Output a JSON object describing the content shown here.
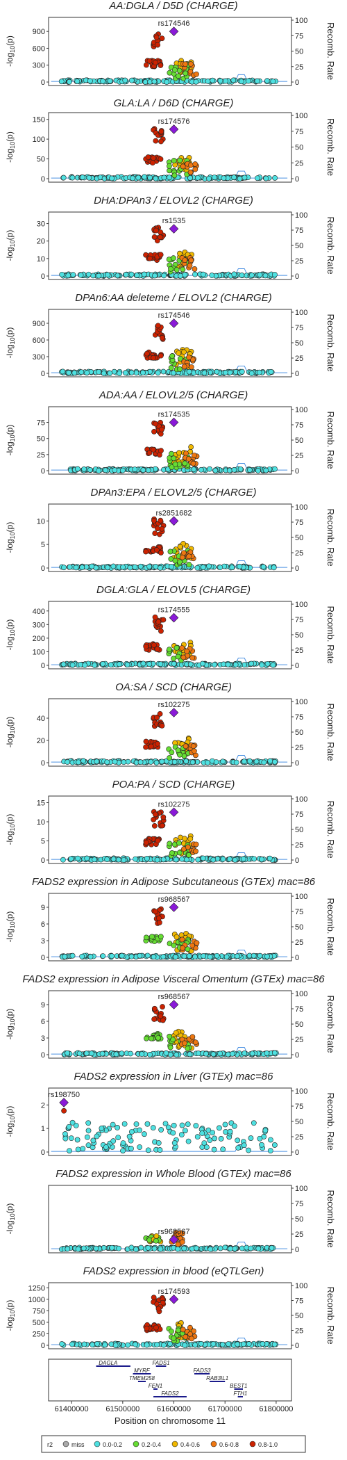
{
  "chart_data": [
    {
      "type": "scatter",
      "title": "AA:DGLA / D5D (CHARGE)",
      "lead_snp": "rs174546",
      "lead": [
        1,
        900
      ],
      "ylabel_base": "-log",
      "ylabel_sub": "10",
      "ylabel_arg": "(p)",
      "yticks": [
        0,
        300,
        600,
        900
      ],
      "ylim": [
        0,
        1100
      ],
      "y2label": "Recomb. Rate",
      "y2ticks": [
        0,
        25,
        50,
        75,
        100
      ],
      "y2lim": [
        0,
        100
      ],
      "pattern": "charge"
    },
    {
      "type": "scatter",
      "title": "GLA:LA / D6D (CHARGE)",
      "lead_snp": "rs174576",
      "lead": [
        1,
        125
      ],
      "ylabel_base": "-log",
      "ylabel_sub": "10",
      "ylabel_arg": "(p)",
      "yticks": [
        0,
        50,
        100,
        150
      ],
      "ylim": [
        0,
        160
      ],
      "y2label": "Recomb. Rate",
      "y2ticks": [
        0,
        25,
        50,
        75,
        100
      ],
      "y2lim": [
        0,
        100
      ],
      "pattern": "charge"
    },
    {
      "type": "scatter",
      "title": "DHA:DPAn3 / ELOVL2 (CHARGE)",
      "lead_snp": "rs1535",
      "lead": [
        1,
        27
      ],
      "ylabel_base": "-log",
      "ylabel_sub": "10",
      "ylabel_arg": "(p)",
      "yticks": [
        0,
        10,
        20,
        30
      ],
      "ylim": [
        0,
        35
      ],
      "y2label": "Recomb. Rate",
      "y2ticks": [
        0,
        25,
        50,
        75,
        100
      ],
      "y2lim": [
        0,
        100
      ],
      "pattern": "charge"
    },
    {
      "type": "scatter",
      "title": "DPAn6:AA deleteme / ELOVL2 (CHARGE)",
      "lead_snp": "rs174546",
      "lead": [
        1,
        900
      ],
      "ylabel_base": "-log",
      "ylabel_sub": "10",
      "ylabel_arg": "(p)",
      "yticks": [
        0,
        300,
        600,
        900
      ],
      "ylim": [
        0,
        1100
      ],
      "y2label": "Recomb. Rate",
      "y2ticks": [
        0,
        25,
        50,
        75,
        100
      ],
      "y2lim": [
        0,
        100
      ],
      "pattern": "charge"
    },
    {
      "type": "scatter",
      "title": "ADA:AA / ELOVL2/5 (CHARGE)",
      "lead_snp": "rs174535",
      "lead": [
        1,
        75
      ],
      "ylabel_base": "-log",
      "ylabel_sub": "10",
      "ylabel_arg": "(p)",
      "yticks": [
        0,
        25,
        50,
        75
      ],
      "ylim": [
        0,
        95
      ],
      "y2label": "Recomb. Rate",
      "y2ticks": [
        0,
        25,
        50,
        75,
        100
      ],
      "y2lim": [
        0,
        100
      ],
      "pattern": "charge"
    },
    {
      "type": "scatter",
      "title": "DPAn3:EPA / ELOVL2/5 (CHARGE)",
      "lead_snp": "rs2851682",
      "lead": [
        1,
        10
      ],
      "ylabel_base": "-log",
      "ylabel_sub": "10",
      "ylabel_arg": "(p)",
      "yticks": [
        0,
        5,
        10
      ],
      "ylim": [
        0,
        13
      ],
      "y2label": "Recomb. Rate",
      "y2ticks": [
        0,
        25,
        50,
        75,
        100
      ],
      "y2lim": [
        0,
        100
      ],
      "pattern": "charge"
    },
    {
      "type": "scatter",
      "title": "DGLA:GLA / ELOVL5 (CHARGE)",
      "lead_snp": "rs174555",
      "lead": [
        1,
        350
      ],
      "ylabel_base": "-log",
      "ylabel_sub": "10",
      "ylabel_arg": "(p)",
      "yticks": [
        0,
        100,
        200,
        300,
        400
      ],
      "ylim": [
        0,
        450
      ],
      "y2label": "Recomb. Rate",
      "y2ticks": [
        0,
        25,
        50,
        75,
        100
      ],
      "y2lim": [
        0,
        100
      ],
      "pattern": "charge"
    },
    {
      "type": "scatter",
      "title": "OA:SA / SCD (CHARGE)",
      "lead_snp": "rs102275",
      "lead": [
        1,
        45
      ],
      "ylabel_base": "-log",
      "ylabel_sub": "10",
      "ylabel_arg": "(p)",
      "yticks": [
        0,
        20,
        40
      ],
      "ylim": [
        0,
        55
      ],
      "y2label": "Recomb. Rate",
      "y2ticks": [
        0,
        25,
        50,
        75,
        100
      ],
      "y2lim": [
        0,
        100
      ],
      "pattern": "charge"
    },
    {
      "type": "scatter",
      "title": "POA:PA / SCD (CHARGE)",
      "lead_snp": "rs102275",
      "lead": [
        1,
        12.5
      ],
      "ylabel_base": "-log",
      "ylabel_sub": "10",
      "ylabel_arg": "(p)",
      "yticks": [
        0,
        5,
        10,
        15
      ],
      "ylim": [
        0,
        16
      ],
      "y2label": "Recomb. Rate",
      "y2ticks": [
        0,
        25,
        50,
        75,
        100
      ],
      "y2lim": [
        0,
        100
      ],
      "pattern": "charge"
    },
    {
      "type": "scatter",
      "title": "FADS2 expression in Adipose Subcutaneous (GTEx) mac=86",
      "lead_snp": "rs968567",
      "lead": [
        1,
        9
      ],
      "ylabel_base": "-log",
      "ylabel_sub": "10",
      "ylabel_arg": "(p)",
      "yticks": [
        0,
        3,
        6,
        9
      ],
      "ylim": [
        0,
        11
      ],
      "y2label": "Recomb. Rate",
      "y2ticks": [
        0,
        25,
        50,
        75,
        100
      ],
      "y2lim": [
        0,
        100
      ],
      "pattern": "gtex"
    },
    {
      "type": "scatter",
      "title": "FADS2 expression in Adipose Visceral Omentum (GTEx) mac=86",
      "lead_snp": "rs968567",
      "lead": [
        1,
        9
      ],
      "ylabel_base": "-log",
      "ylabel_sub": "10",
      "ylabel_arg": "(p)",
      "yticks": [
        0,
        3,
        6,
        9
      ],
      "ylim": [
        0,
        11
      ],
      "y2label": "Recomb. Rate",
      "y2ticks": [
        0,
        25,
        50,
        75,
        100
      ],
      "y2lim": [
        0,
        100
      ],
      "pattern": "gtex"
    },
    {
      "type": "scatter",
      "title": "FADS2 expression in Liver (GTEx) mac=86",
      "lead_snp": "rs198750",
      "lead": [
        1,
        2.1
      ],
      "ylabel_base": "-log",
      "ylabel_sub": "10",
      "ylabel_arg": "(p)",
      "yticks": [
        0,
        1,
        2
      ],
      "ylim": [
        0,
        2.6
      ],
      "y2label": "Recomb. Rate",
      "y2ticks": [
        0,
        25,
        50,
        75,
        100
      ],
      "y2lim": [
        0,
        100
      ],
      "pattern": "liver"
    },
    {
      "type": "scatter",
      "title": "FADS2 expression in Whole Blood (GTEx) mac=86",
      "lead_snp": "rs968567",
      "lead": [
        1,
        0
      ],
      "ylabel_base": "-log",
      "ylabel_sub": "10",
      "ylabel_arg": "(p)",
      "yticks": [],
      "ylim": [
        0,
        100
      ],
      "y2label": "Recomb. Rate",
      "y2ticks": [
        0,
        25,
        50,
        75,
        100
      ],
      "y2lim": [
        0,
        100
      ],
      "pattern": "blood"
    },
    {
      "type": "scatter",
      "title": "FADS2 expression in blood (eQTLGen)",
      "lead_snp": "rs174593",
      "lead": [
        1,
        1000
      ],
      "ylabel_base": "-log",
      "ylabel_sub": "10",
      "ylabel_arg": "(p)",
      "yticks": [
        0,
        250,
        500,
        750,
        1000,
        1250
      ],
      "ylim": [
        0,
        1300
      ],
      "y2label": "Recomb. Rate",
      "y2ticks": [
        0,
        25,
        50,
        75,
        100
      ],
      "y2lim": [
        0,
        100
      ],
      "pattern": "eqtlgen"
    }
  ],
  "genes": [
    {
      "name": "DAGLA",
      "start": 61448000,
      "end": 61515000,
      "row": 0,
      "label_pos": 0.35
    },
    {
      "name": "FADS1",
      "start": 61565000,
      "end": 61585000,
      "row": 0,
      "label_pos": 0.5
    },
    {
      "name": "MYRF",
      "start": 61520000,
      "end": 61555000,
      "row": 1,
      "label_pos": 0.5
    },
    {
      "name": "FADS3",
      "start": 61640000,
      "end": 61670000,
      "row": 1,
      "label_pos": 0.5
    },
    {
      "name": "TMEM258",
      "start": 61530000,
      "end": 61545000,
      "row": 2,
      "label_pos": 0.5
    },
    {
      "name": "RAB3IL1",
      "start": 61670000,
      "end": 61700000,
      "row": 2,
      "label_pos": 0.5
    },
    {
      "name": "FEN1",
      "start": 61560000,
      "end": 61568000,
      "row": 3,
      "label_pos": 0.5
    },
    {
      "name": "BEST1",
      "start": 61718000,
      "end": 61735000,
      "row": 3,
      "label_pos": 0.5
    },
    {
      "name": "FADS2",
      "start": 61560000,
      "end": 61625000,
      "row": 4,
      "label_pos": 0.5
    },
    {
      "name": "FTH1",
      "start": 61725000,
      "end": 61735000,
      "row": 4,
      "label_pos": 0.5
    }
  ],
  "xaxis": {
    "label": "Position on chromosome 11",
    "ticks": [
      61400000,
      61500000,
      61600000,
      61700000,
      61800000
    ],
    "lim": [
      61355000,
      61830000
    ]
  },
  "legend": {
    "title": "r2",
    "items": [
      {
        "label": "miss",
        "color": "#aaaaaa"
      },
      {
        "label": "0.0-0.2",
        "color": "#4ee0e0"
      },
      {
        "label": "0.2-0.4",
        "color": "#66dd33"
      },
      {
        "label": "0.4-0.6",
        "color": "#f0b800"
      },
      {
        "label": "0.6-0.8",
        "color": "#ee7711"
      },
      {
        "label": "0.8-1.0",
        "color": "#cc2200"
      }
    ]
  },
  "colors": {
    "cyan": "#4ee0e0",
    "green": "#66dd33",
    "yellow": "#f0b800",
    "orange": "#ee7711",
    "red": "#cc2200",
    "lead": "#8a1ad8",
    "recomb": "#4a90e2"
  }
}
